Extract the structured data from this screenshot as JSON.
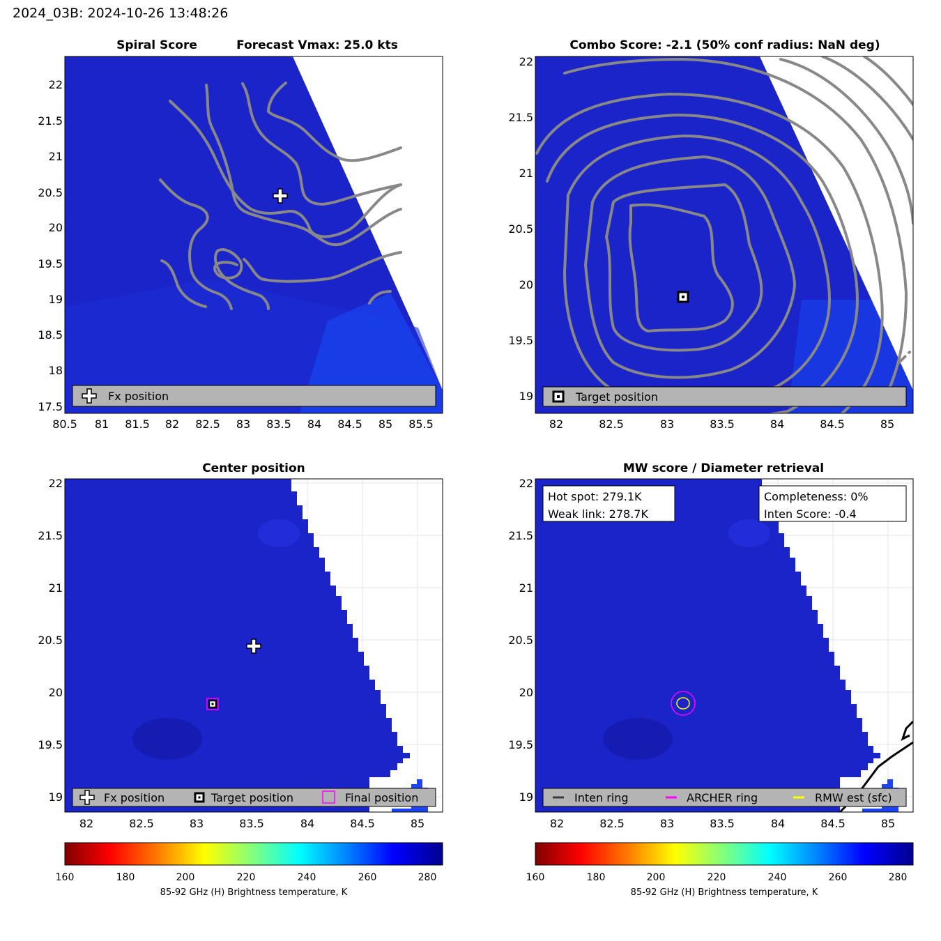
{
  "header": {
    "title": "2024_03B: 2024-10-26 13:48:26"
  },
  "colors": {
    "panel_bg": "#1a22c6",
    "contour": "#888888",
    "legend_bg": "#b4b4b4",
    "archer_ring": "#ff00ff",
    "rmw_ring": "#ffff00",
    "inten_ring": "#3c3c3c"
  },
  "panel1": {
    "title_left": "Spiral Score",
    "title_right": "Forecast Vmax: 25.0 kts",
    "xticks": [
      "80.5",
      "81",
      "81.5",
      "82",
      "82.5",
      "83",
      "83.5",
      "84",
      "84.5",
      "85",
      "85.5"
    ],
    "yticks": [
      "22",
      "21.5",
      "21",
      "20.5",
      "20",
      "19.5",
      "19",
      "18.5",
      "18",
      "17.5"
    ],
    "legend": {
      "fx": "Fx position"
    }
  },
  "panel2": {
    "title": "Combo Score: -2.1  (50% conf radius: NaN deg)",
    "xticks": [
      "82",
      "82.5",
      "83",
      "83.5",
      "84",
      "84.5",
      "85"
    ],
    "yticks": [
      "22",
      "21.5",
      "21",
      "20.5",
      "20",
      "19.5",
      "19"
    ],
    "legend": {
      "target": "Target position"
    }
  },
  "panel3": {
    "title": "Center position",
    "xticks": [
      "82",
      "82.5",
      "83",
      "83.5",
      "84",
      "84.5",
      "85"
    ],
    "yticks": [
      "22",
      "21.5",
      "21",
      "20.5",
      "20",
      "19.5",
      "19"
    ],
    "legend": {
      "fx": "Fx position",
      "target": "Target position",
      "final": "Final position"
    }
  },
  "panel4": {
    "title": "MW score / Diameter retrieval",
    "xticks": [
      "82",
      "82.5",
      "83",
      "83.5",
      "84",
      "84.5",
      "85"
    ],
    "yticks": [
      "22",
      "21.5",
      "21",
      "20.5",
      "20",
      "19.5",
      "19"
    ],
    "info_left": {
      "hot_spot": "Hot spot: 279.1K",
      "weak_link": "Weak link: 278.7K"
    },
    "info_right": {
      "completeness": "Completeness: 0%",
      "inten_score": "Inten Score: -0.4"
    },
    "legend": {
      "inten": "Inten ring",
      "archer": "ARCHER ring",
      "rmw": "RMW est (sfc)"
    }
  },
  "colorbar": {
    "ticks": [
      "160",
      "180",
      "200",
      "220",
      "240",
      "260",
      "280"
    ],
    "label": "85-92 GHz (H) Brightness temperature, K",
    "range": [
      160,
      285
    ]
  },
  "chart_data": [
    {
      "type": "heatmap",
      "title": "Spiral Score",
      "subtitle": "Forecast Vmax: 25.0 kts",
      "xlim": [
        80.5,
        85.8
      ],
      "ylim": [
        17.45,
        22.4
      ],
      "markers": [
        {
          "name": "Fx position",
          "x": 83.53,
          "y": 20.43
        }
      ]
    },
    {
      "type": "heatmap",
      "title": "Combo Score: -2.1  (50% conf radius: NaN deg)",
      "xlim": [
        81.8,
        85.2
      ],
      "ylim": [
        18.85,
        22.05
      ],
      "markers": [
        {
          "name": "Target position",
          "x": 83.15,
          "y": 19.89
        }
      ]
    },
    {
      "type": "heatmap",
      "title": "Center position",
      "xlim": [
        81.8,
        85.2
      ],
      "ylim": [
        18.85,
        22.05
      ],
      "markers": [
        {
          "name": "Fx position",
          "x": 83.53,
          "y": 20.43
        },
        {
          "name": "Target position",
          "x": 83.15,
          "y": 19.89
        },
        {
          "name": "Final position",
          "x": 83.15,
          "y": 19.89
        }
      ]
    },
    {
      "type": "heatmap",
      "title": "MW score / Diameter retrieval",
      "xlim": [
        81.8,
        85.2
      ],
      "ylim": [
        18.85,
        22.05
      ],
      "markers": [
        {
          "name": "ARCHER ring",
          "x": 83.15,
          "y": 19.89
        },
        {
          "name": "RMW est (sfc)",
          "x": 83.15,
          "y": 19.89
        }
      ]
    }
  ]
}
